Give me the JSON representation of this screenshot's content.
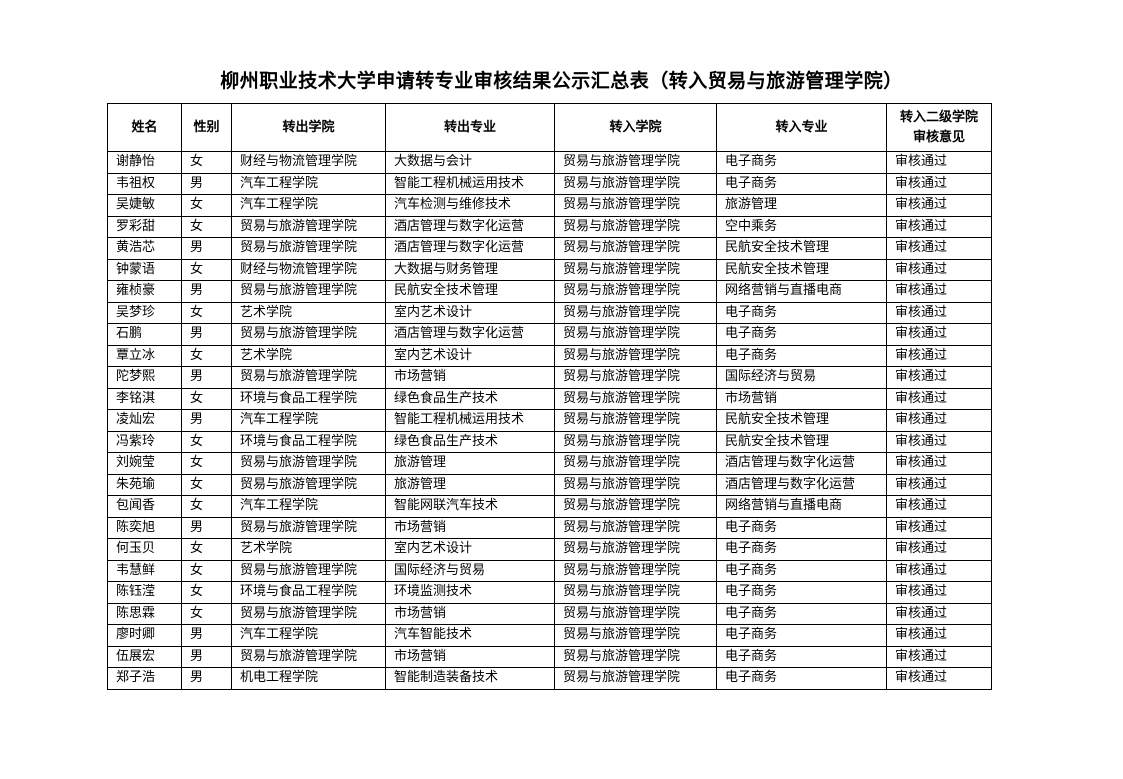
{
  "title": "柳州职业技术大学申请转专业审核结果公示汇总表（转入贸易与旅游管理学院）",
  "headers": [
    "姓名",
    "性别",
    "转出学院",
    "转出专业",
    "转入学院",
    "转入专业",
    "转入二级学院审核意见"
  ],
  "header_last_line1": "转入二级学院",
  "header_last_line2": "审核意见",
  "rows": [
    [
      "谢静怡",
      "女",
      "财经与物流管理学院",
      "大数据与会计",
      "贸易与旅游管理学院",
      "电子商务",
      "审核通过"
    ],
    [
      "韦祖权",
      "男",
      "汽车工程学院",
      "智能工程机械运用技术",
      "贸易与旅游管理学院",
      "电子商务",
      "审核通过"
    ],
    [
      "吴婕敏",
      "女",
      "汽车工程学院",
      "汽车检测与维修技术",
      "贸易与旅游管理学院",
      "旅游管理",
      "审核通过"
    ],
    [
      "罗彩甜",
      "女",
      "贸易与旅游管理学院",
      "酒店管理与数字化运营",
      "贸易与旅游管理学院",
      "空中乘务",
      "审核通过"
    ],
    [
      "黄浩芯",
      "男",
      "贸易与旅游管理学院",
      "酒店管理与数字化运营",
      "贸易与旅游管理学院",
      "民航安全技术管理",
      "审核通过"
    ],
    [
      "钟蒙语",
      "女",
      "财经与物流管理学院",
      "大数据与财务管理",
      "贸易与旅游管理学院",
      "民航安全技术管理",
      "审核通过"
    ],
    [
      "雍桢豪",
      "男",
      "贸易与旅游管理学院",
      "民航安全技术管理",
      "贸易与旅游管理学院",
      "网络营销与直播电商",
      "审核通过"
    ],
    [
      "吴梦珍",
      "女",
      "艺术学院",
      "室内艺术设计",
      "贸易与旅游管理学院",
      "电子商务",
      "审核通过"
    ],
    [
      "石鹏",
      "男",
      "贸易与旅游管理学院",
      "酒店管理与数字化运营",
      "贸易与旅游管理学院",
      "电子商务",
      "审核通过"
    ],
    [
      "覃立冰",
      "女",
      "艺术学院",
      "室内艺术设计",
      "贸易与旅游管理学院",
      "电子商务",
      "审核通过"
    ],
    [
      "陀梦熙",
      "男",
      "贸易与旅游管理学院",
      "市场营销",
      "贸易与旅游管理学院",
      "国际经济与贸易",
      "审核通过"
    ],
    [
      "李铭淇",
      "女",
      "环境与食品工程学院",
      "绿色食品生产技术",
      "贸易与旅游管理学院",
      "市场营销",
      "审核通过"
    ],
    [
      "凌灿宏",
      "男",
      "汽车工程学院",
      "智能工程机械运用技术",
      "贸易与旅游管理学院",
      "民航安全技术管理",
      "审核通过"
    ],
    [
      "冯紫玲",
      "女",
      "环境与食品工程学院",
      "绿色食品生产技术",
      "贸易与旅游管理学院",
      "民航安全技术管理",
      "审核通过"
    ],
    [
      "刘婉莹",
      "女",
      "贸易与旅游管理学院",
      "旅游管理",
      "贸易与旅游管理学院",
      "酒店管理与数字化运营",
      "审核通过"
    ],
    [
      "朱苑瑜",
      "女",
      "贸易与旅游管理学院",
      "旅游管理",
      "贸易与旅游管理学院",
      "酒店管理与数字化运营",
      "审核通过"
    ],
    [
      "包闻香",
      "女",
      "汽车工程学院",
      "智能网联汽车技术",
      "贸易与旅游管理学院",
      "网络营销与直播电商",
      "审核通过"
    ],
    [
      "陈奕旭",
      "男",
      "贸易与旅游管理学院",
      "市场营销",
      "贸易与旅游管理学院",
      "电子商务",
      "审核通过"
    ],
    [
      "何玉贝",
      "女",
      "艺术学院",
      "室内艺术设计",
      "贸易与旅游管理学院",
      "电子商务",
      "审核通过"
    ],
    [
      "韦慧鲜",
      "女",
      "贸易与旅游管理学院",
      "国际经济与贸易",
      "贸易与旅游管理学院",
      "电子商务",
      "审核通过"
    ],
    [
      "陈钰滢",
      "女",
      "环境与食品工程学院",
      "环境监测技术",
      "贸易与旅游管理学院",
      "电子商务",
      "审核通过"
    ],
    [
      "陈思霖",
      "女",
      "贸易与旅游管理学院",
      "市场营销",
      "贸易与旅游管理学院",
      "电子商务",
      "审核通过"
    ],
    [
      "廖时卿",
      "男",
      "汽车工程学院",
      "汽车智能技术",
      "贸易与旅游管理学院",
      "电子商务",
      "审核通过"
    ],
    [
      "伍展宏",
      "男",
      "贸易与旅游管理学院",
      "市场营销",
      "贸易与旅游管理学院",
      "电子商务",
      "审核通过"
    ],
    [
      "郑子浩",
      "男",
      "机电工程学院",
      "智能制造装备技术",
      "贸易与旅游管理学院",
      "电子商务",
      "审核通过"
    ]
  ]
}
